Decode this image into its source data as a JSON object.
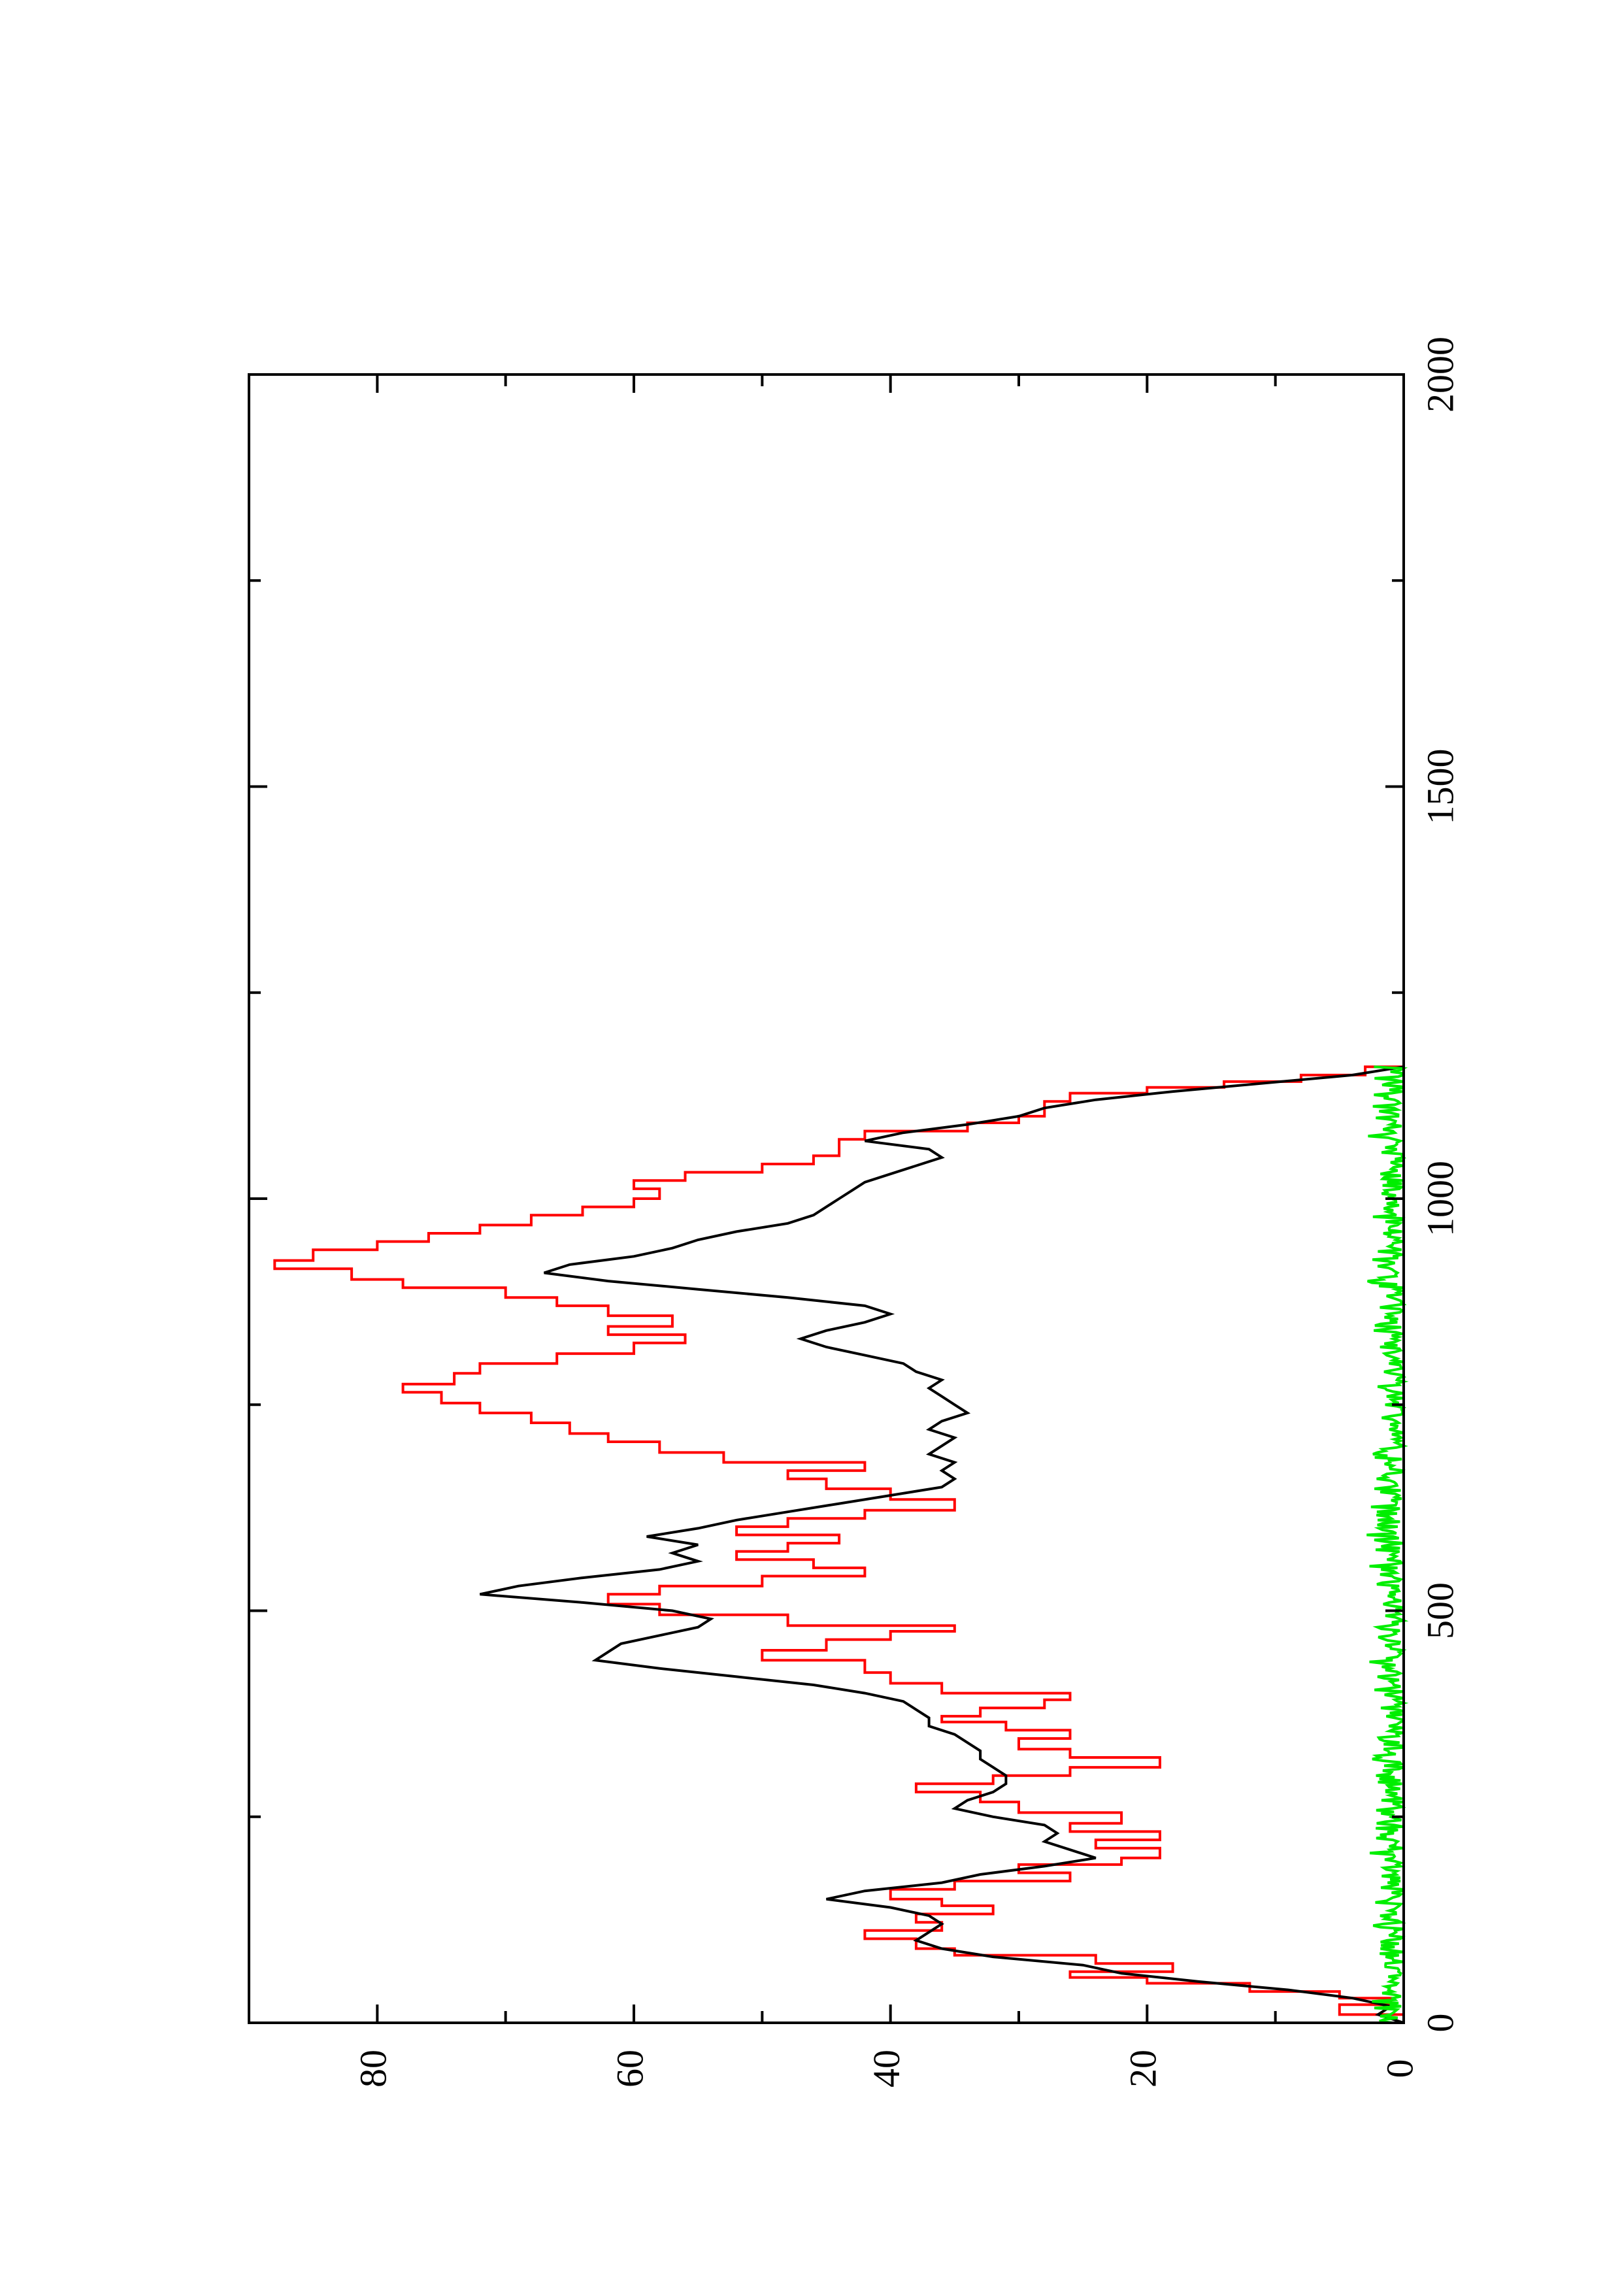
{
  "chart_data": {
    "type": "line",
    "orientation": "rotated-90-ccw",
    "title": "",
    "xlabel": "",
    "ylabel": "",
    "xlim": [
      0,
      2000
    ],
    "ylim": [
      0,
      90
    ],
    "x_ticks": [
      0,
      500,
      1000,
      1500,
      2000
    ],
    "x_tick_labels": [
      "0",
      "500",
      "1000",
      "1500",
      "2000"
    ],
    "x_minor_ticks": [
      250,
      750,
      1250,
      1750
    ],
    "y_ticks": [
      0,
      20,
      40,
      60,
      80
    ],
    "y_tick_labels": [
      "0",
      "20",
      "40",
      "60",
      "80"
    ],
    "y_minor_ticks": [
      10,
      30,
      50,
      70
    ],
    "grid": false,
    "legend": "none",
    "series": [
      {
        "color": "#ff0000",
        "step": true,
        "points": [
          [
            0,
            0
          ],
          [
            10,
            5
          ],
          [
            22,
            1
          ],
          [
            30,
            5
          ],
          [
            38,
            12
          ],
          [
            48,
            20
          ],
          [
            55,
            26
          ],
          [
            62,
            18
          ],
          [
            72,
            24
          ],
          [
            82,
            35
          ],
          [
            90,
            38
          ],
          [
            102,
            42
          ],
          [
            112,
            36
          ],
          [
            122,
            38
          ],
          [
            132,
            32
          ],
          [
            142,
            36
          ],
          [
            150,
            40
          ],
          [
            162,
            35
          ],
          [
            172,
            26
          ],
          [
            182,
            30
          ],
          [
            192,
            22
          ],
          [
            200,
            19
          ],
          [
            212,
            24
          ],
          [
            222,
            19
          ],
          [
            232,
            26
          ],
          [
            242,
            22
          ],
          [
            255,
            30
          ],
          [
            268,
            33
          ],
          [
            280,
            38
          ],
          [
            290,
            32
          ],
          [
            300,
            26
          ],
          [
            310,
            19
          ],
          [
            322,
            26
          ],
          [
            332,
            30
          ],
          [
            345,
            26
          ],
          [
            355,
            31
          ],
          [
            365,
            36
          ],
          [
            372,
            33
          ],
          [
            382,
            28
          ],
          [
            392,
            26
          ],
          [
            400,
            36
          ],
          [
            412,
            40
          ],
          [
            425,
            42
          ],
          [
            440,
            50
          ],
          [
            452,
            45
          ],
          [
            465,
            40
          ],
          [
            475,
            35
          ],
          [
            482,
            48
          ],
          [
            495,
            58
          ],
          [
            508,
            62
          ],
          [
            520,
            58
          ],
          [
            530,
            50
          ],
          [
            542,
            42
          ],
          [
            552,
            46
          ],
          [
            562,
            52
          ],
          [
            572,
            48
          ],
          [
            582,
            44
          ],
          [
            592,
            52
          ],
          [
            602,
            48
          ],
          [
            612,
            42
          ],
          [
            622,
            35
          ],
          [
            635,
            40
          ],
          [
            648,
            45
          ],
          [
            660,
            48
          ],
          [
            670,
            42
          ],
          [
            680,
            53
          ],
          [
            692,
            58
          ],
          [
            705,
            62
          ],
          [
            715,
            65
          ],
          [
            728,
            68
          ],
          [
            740,
            72
          ],
          [
            752,
            75
          ],
          [
            765,
            78
          ],
          [
            775,
            74
          ],
          [
            788,
            72
          ],
          [
            800,
            66
          ],
          [
            812,
            60
          ],
          [
            825,
            56
          ],
          [
            835,
            62
          ],
          [
            845,
            57
          ],
          [
            858,
            62
          ],
          [
            870,
            66
          ],
          [
            880,
            70
          ],
          [
            892,
            78
          ],
          [
            902,
            82
          ],
          [
            915,
            88
          ],
          [
            925,
            85
          ],
          [
            938,
            80
          ],
          [
            948,
            76
          ],
          [
            958,
            72
          ],
          [
            968,
            68
          ],
          [
            980,
            64
          ],
          [
            990,
            60
          ],
          [
            1000,
            58
          ],
          [
            1012,
            60
          ],
          [
            1022,
            56
          ],
          [
            1032,
            50
          ],
          [
            1042,
            46
          ],
          [
            1052,
            44
          ],
          [
            1060,
            44
          ],
          [
            1072,
            42
          ],
          [
            1082,
            34
          ],
          [
            1092,
            30
          ],
          [
            1100,
            28
          ],
          [
            1110,
            28
          ],
          [
            1118,
            26
          ],
          [
            1128,
            20
          ],
          [
            1135,
            14
          ],
          [
            1142,
            8
          ],
          [
            1150,
            3
          ],
          [
            1160,
            0
          ]
        ]
      },
      {
        "color": "#000000",
        "step": false,
        "points": [
          [
            0,
            0
          ],
          [
            10,
            2
          ],
          [
            20,
            1
          ],
          [
            30,
            4
          ],
          [
            40,
            9
          ],
          [
            50,
            16
          ],
          [
            60,
            22
          ],
          [
            70,
            25
          ],
          [
            80,
            32
          ],
          [
            90,
            36
          ],
          [
            100,
            38
          ],
          [
            110,
            37
          ],
          [
            120,
            36
          ],
          [
            130,
            37
          ],
          [
            140,
            40
          ],
          [
            150,
            45
          ],
          [
            160,
            42
          ],
          [
            170,
            36
          ],
          [
            180,
            33
          ],
          [
            190,
            28
          ],
          [
            200,
            24
          ],
          [
            210,
            26
          ],
          [
            220,
            28
          ],
          [
            230,
            27
          ],
          [
            240,
            28
          ],
          [
            250,
            32
          ],
          [
            260,
            35
          ],
          [
            270,
            34
          ],
          [
            280,
            32
          ],
          [
            290,
            31
          ],
          [
            300,
            31
          ],
          [
            310,
            32
          ],
          [
            320,
            33
          ],
          [
            330,
            33
          ],
          [
            340,
            34
          ],
          [
            350,
            35
          ],
          [
            360,
            37
          ],
          [
            370,
            37
          ],
          [
            380,
            38
          ],
          [
            390,
            39
          ],
          [
            400,
            42
          ],
          [
            410,
            46
          ],
          [
            420,
            52
          ],
          [
            430,
            58
          ],
          [
            440,
            63
          ],
          [
            450,
            62
          ],
          [
            460,
            61
          ],
          [
            470,
            58
          ],
          [
            480,
            55
          ],
          [
            490,
            54
          ],
          [
            500,
            57
          ],
          [
            510,
            64
          ],
          [
            520,
            72
          ],
          [
            530,
            69
          ],
          [
            540,
            64
          ],
          [
            550,
            58
          ],
          [
            560,
            55
          ],
          [
            570,
            57
          ],
          [
            580,
            55
          ],
          [
            590,
            59
          ],
          [
            600,
            55
          ],
          [
            610,
            52
          ],
          [
            620,
            48
          ],
          [
            630,
            44
          ],
          [
            640,
            40
          ],
          [
            650,
            36
          ],
          [
            660,
            35
          ],
          [
            670,
            36
          ],
          [
            680,
            35
          ],
          [
            690,
            37
          ],
          [
            700,
            36
          ],
          [
            710,
            35
          ],
          [
            720,
            37
          ],
          [
            730,
            36
          ],
          [
            740,
            34
          ],
          [
            750,
            35
          ],
          [
            760,
            36
          ],
          [
            770,
            37
          ],
          [
            780,
            36
          ],
          [
            790,
            38
          ],
          [
            800,
            39
          ],
          [
            810,
            42
          ],
          [
            820,
            45
          ],
          [
            830,
            47
          ],
          [
            840,
            45
          ],
          [
            850,
            42
          ],
          [
            860,
            40
          ],
          [
            870,
            42
          ],
          [
            880,
            48
          ],
          [
            890,
            55
          ],
          [
            900,
            62
          ],
          [
            910,
            67
          ],
          [
            920,
            65
          ],
          [
            930,
            60
          ],
          [
            940,
            57
          ],
          [
            950,
            55
          ],
          [
            960,
            52
          ],
          [
            970,
            48
          ],
          [
            980,
            46
          ],
          [
            990,
            45
          ],
          [
            1000,
            44
          ],
          [
            1010,
            43
          ],
          [
            1020,
            42
          ],
          [
            1030,
            40
          ],
          [
            1040,
            38
          ],
          [
            1050,
            36
          ],
          [
            1060,
            37
          ],
          [
            1070,
            42
          ],
          [
            1080,
            39
          ],
          [
            1090,
            34
          ],
          [
            1100,
            30
          ],
          [
            1110,
            28
          ],
          [
            1120,
            24
          ],
          [
            1130,
            18
          ],
          [
            1140,
            11
          ],
          [
            1150,
            4
          ],
          [
            1160,
            0
          ]
        ]
      },
      {
        "color": "#00ee00",
        "step": false,
        "noise_band": true,
        "x_range": [
          0,
          1160
        ],
        "baseline": 0,
        "amplitude_max": 3
      }
    ]
  }
}
